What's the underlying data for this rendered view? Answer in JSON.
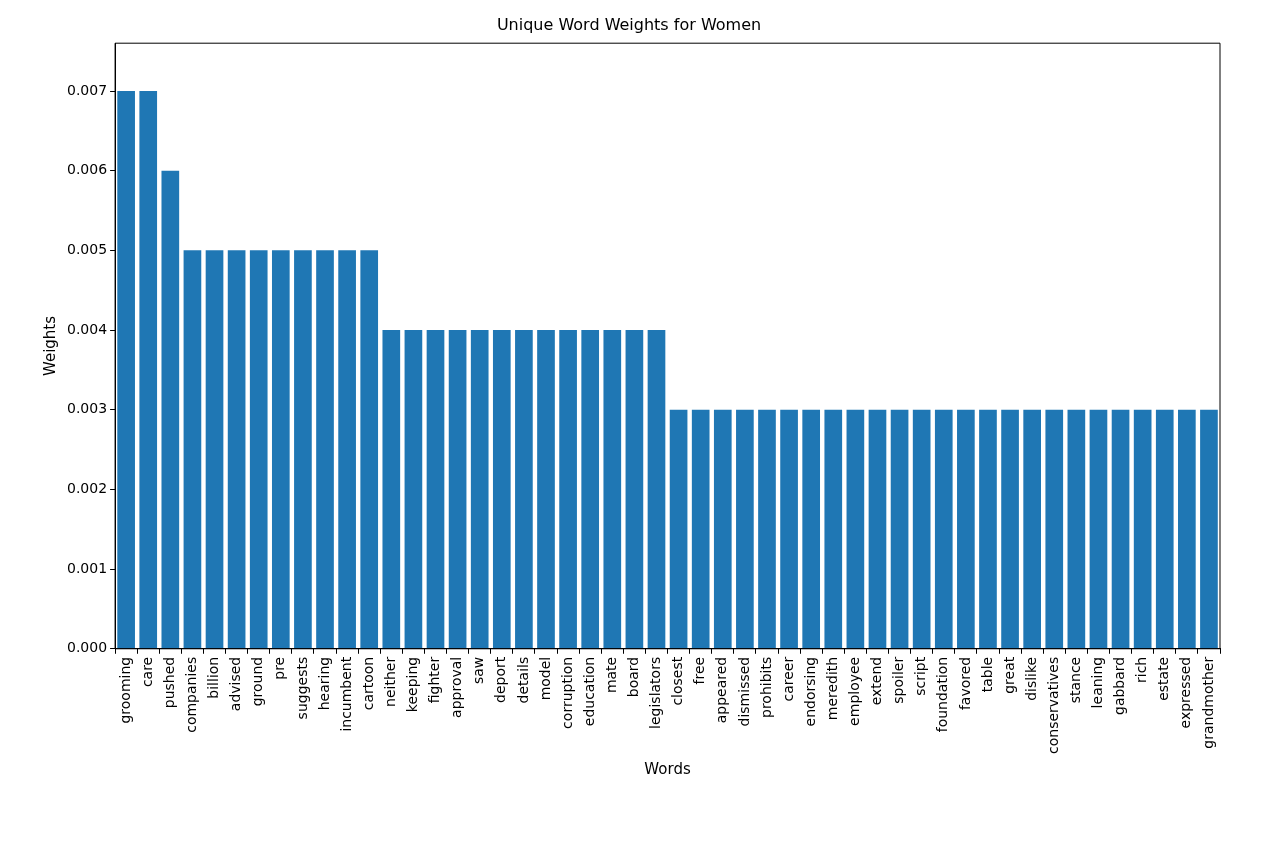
{
  "chart_data": {
    "type": "bar",
    "title": "Unique Word Weights for Women",
    "xlabel": "Words",
    "ylabel": "Weights",
    "categories": [
      "grooming",
      "care",
      "pushed",
      "companies",
      "billion",
      "advised",
      "ground",
      "pre",
      "suggests",
      "hearing",
      "incumbent",
      "cartoon",
      "neither",
      "keeping",
      "fighter",
      "approval",
      "saw",
      "deport",
      "details",
      "model",
      "corruption",
      "education",
      "mate",
      "board",
      "legislators",
      "closest",
      "free",
      "appeared",
      "dismissed",
      "prohibits",
      "career",
      "endorsing",
      "meredith",
      "employee",
      "extend",
      "spoiler",
      "script",
      "foundation",
      "favored",
      "table",
      "great",
      "dislike",
      "conservatives",
      "stance",
      "leaning",
      "gabbard",
      "rich",
      "estate",
      "expressed",
      "grandmother"
    ],
    "values": [
      0.007,
      0.007,
      0.006,
      0.005,
      0.005,
      0.005,
      0.005,
      0.005,
      0.005,
      0.005,
      0.005,
      0.005,
      0.004,
      0.004,
      0.004,
      0.004,
      0.004,
      0.004,
      0.004,
      0.004,
      0.004,
      0.004,
      0.004,
      0.004,
      0.004,
      0.003,
      0.003,
      0.003,
      0.003,
      0.003,
      0.003,
      0.003,
      0.003,
      0.003,
      0.003,
      0.003,
      0.003,
      0.003,
      0.003,
      0.003,
      0.003,
      0.003,
      0.003,
      0.003,
      0.003,
      0.003,
      0.003,
      0.003,
      0.003,
      0.003
    ],
    "color": "#1f77b4",
    "ylim": [
      0,
      0.0076
    ],
    "yticks": [
      {
        "value": 0,
        "label": "0.000"
      },
      0.001,
      0.002,
      0.003,
      0.004,
      0.005,
      0.006,
      0.007
    ]
  }
}
